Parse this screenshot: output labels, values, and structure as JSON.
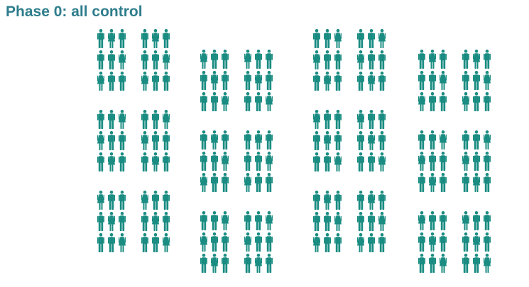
{
  "title": "Phase 0: all control",
  "colors": {
    "title": "#2e7d8c",
    "figure": "#1a8c82"
  },
  "icons": {
    "male": "person-male-icon",
    "female": "person-female-icon"
  },
  "arrangement": {
    "columns": 4,
    "clusters_per_column": 3,
    "groups_per_cluster": 2,
    "rows_per_group": 3,
    "figures_per_row": 3
  }
}
